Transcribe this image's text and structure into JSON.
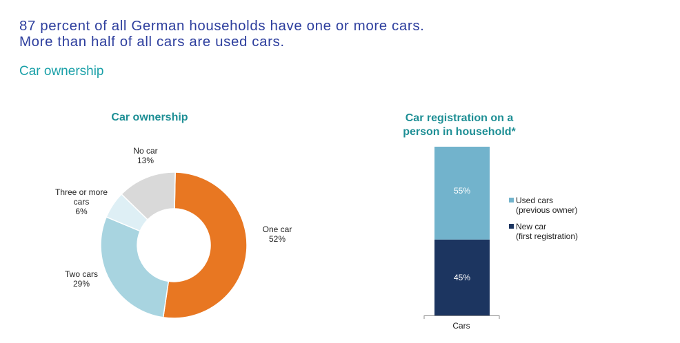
{
  "headline": {
    "line1": "87 percent of all German households have one or more cars.",
    "line2": "More than half of all cars are used cars."
  },
  "section_title": "Car ownership",
  "chart_data": [
    {
      "type": "pie",
      "subtype": "donut",
      "title": "Car ownership",
      "categories": [
        "One car",
        "Two cars",
        "Three or more cars",
        "No car"
      ],
      "values": [
        52,
        29,
        6,
        13
      ],
      "labels": [
        {
          "lines": [
            "One car",
            "52%"
          ]
        },
        {
          "lines": [
            "Two cars",
            "29%"
          ]
        },
        {
          "lines": [
            "Three or more",
            "cars",
            "6%"
          ]
        },
        {
          "lines": [
            "No car",
            "13%"
          ]
        }
      ],
      "colors": [
        "#e87722",
        "#a8d4e0",
        "#deeff5",
        "#d9d9d9"
      ]
    },
    {
      "type": "bar",
      "subtype": "stacked",
      "title_lines": [
        "Car registration on a",
        "person in household*"
      ],
      "categories": [
        "Cars"
      ],
      "series": [
        {
          "name": "New car (first registration)",
          "legend_lines": [
            "New car",
            "(first registration)"
          ],
          "values": [
            45
          ],
          "label": "45%",
          "color": "#1c3560"
        },
        {
          "name": "Used cars (previous owner)",
          "legend_lines": [
            "Used cars",
            "(previous owner)"
          ],
          "values": [
            55
          ],
          "label": "55%",
          "color": "#72b3cc"
        }
      ],
      "ylim": [
        0,
        100
      ],
      "legend_position": "right"
    }
  ]
}
